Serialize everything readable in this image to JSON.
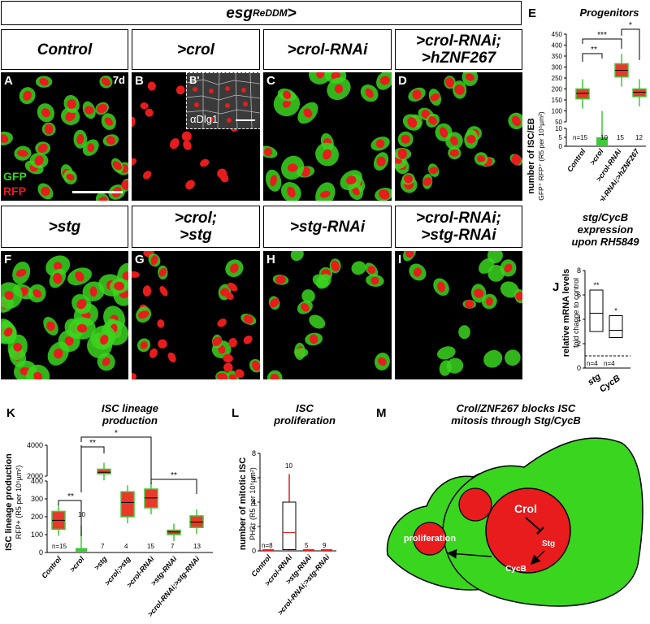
{
  "header": {
    "base": "esg",
    "sup": "ReDDM",
    "suffix": ">"
  },
  "row1": [
    {
      "letter": "A",
      "label": "Control",
      "corner": "7d"
    },
    {
      "letter": "B",
      "label": ">crol",
      "inset_letter": "B'",
      "inset_label": "αDlg1"
    },
    {
      "letter": "C",
      "label": ">crol-RNAi"
    },
    {
      "letter": "D",
      "label_lines": [
        ">crol-RNAi;",
        ">hZNF267"
      ]
    }
  ],
  "row2": [
    {
      "letter": "F",
      "label": ">stg"
    },
    {
      "letter": "G",
      "label_lines": [
        ">crol;",
        ">stg"
      ]
    },
    {
      "letter": "H",
      "label": ">stg-RNAi"
    },
    {
      "letter": "I",
      "label_lines": [
        ">crol-RNAi;",
        ">stg-RNAi"
      ]
    }
  ],
  "channels": {
    "gfp": "GFP",
    "rfp": "RFP"
  },
  "colors": {
    "green": "#39d51f",
    "red": "#e81c1c",
    "box_red": "#e83a2a",
    "box_green": "#3ec93a"
  },
  "panel_e": {
    "letter": "E",
    "title": "Progenitors",
    "ylabel_main": "number of ISC/EB",
    "ylabel_sub": "GFP⁺ RFP⁺ (R5 per 10⁵µm²)",
    "ticks": [
      "0",
      "5",
      "10",
      "50",
      "100",
      "150",
      "200",
      "250",
      "300",
      "350",
      "400",
      "450"
    ],
    "sig": [
      "**",
      "***",
      "*"
    ],
    "n": [
      "n=15",
      "10",
      "15",
      "12"
    ],
    "groups": [
      "Control",
      ">crol",
      ">crol-RNAi",
      ">crol-RNAi;>hZNF267"
    ]
  },
  "chart_data": [
    {
      "type": "box",
      "panel": "E",
      "title": "Progenitors",
      "ylabel": "number of ISC/EB GFP+ RFP+ (R5 per 10^5 µm²)",
      "categories": [
        "Control",
        ">crol",
        ">crol-RNAi",
        ">crol-RNAi;>hZNF267"
      ],
      "median": [
        180,
        2,
        285,
        185
      ],
      "q1": [
        155,
        0,
        255,
        165
      ],
      "q3": [
        200,
        5,
        315,
        200
      ],
      "n": [
        15,
        10,
        15,
        12
      ],
      "significance": [
        "**",
        "***",
        "*"
      ]
    },
    {
      "type": "box",
      "panel": "J",
      "title": "stg/CycB expression upon RH5849",
      "ylabel": "relative mRNA levels fold change to control",
      "categories": [
        "stg",
        "CycB"
      ],
      "median": [
        4.5,
        3.1
      ],
      "q1": [
        3.0,
        2.5
      ],
      "q3": [
        6.4,
        4.3
      ],
      "ylim": [
        0,
        8
      ],
      "n": [
        4,
        4
      ],
      "significance": [
        "**",
        "*"
      ]
    },
    {
      "type": "box",
      "panel": "K",
      "title": "ISC lineage production",
      "ylabel": "ISC lineage production RFP+ (R5 per 10^5 µm²)",
      "categories": [
        "Control",
        ">crol",
        ">stg",
        ">crol;>stg",
        ">crol-RNAi",
        ">stg-RNAi",
        ">crol-RNAi;>stg-RNAi"
      ],
      "median": [
        180,
        15,
        2250,
        280,
        305,
        115,
        170
      ],
      "q1": [
        130,
        10,
        2150,
        200,
        250,
        100,
        140
      ],
      "q3": [
        230,
        20,
        2450,
        340,
        355,
        125,
        205
      ],
      "n": [
        15,
        10,
        7,
        4,
        15,
        7,
        13
      ],
      "significance": [
        "**",
        "**",
        "*",
        "**"
      ]
    },
    {
      "type": "bar",
      "panel": "L",
      "title": "ISC proliferation",
      "ylabel": "number of mitotic ISC PH3+ (R5 per 10^5 µm²)",
      "categories": [
        "Control",
        ">crol-RNAi",
        ">stg-RNAi",
        ">crol-RNAi;>stg-RNAi"
      ],
      "values": [
        0.05,
        1.5,
        0.02,
        0.02
      ],
      "q3": [
        0.05,
        4.0,
        0.02,
        0.02
      ],
      "ylim": [
        0,
        8
      ],
      "n": [
        8,
        10,
        5,
        9
      ]
    }
  ],
  "panel_j": {
    "letter": "J",
    "title_lines": [
      "stg/CycB",
      "expression",
      "upon RH5849"
    ],
    "ylabel_main": "relative mRNA levels",
    "ylabel_sub": "fold change to control",
    "ticks": [
      "0",
      "2",
      "4",
      "6",
      "8"
    ],
    "sig": [
      "**",
      "*"
    ],
    "n": [
      "n=4",
      "n=4"
    ],
    "groups": [
      "stg",
      "CycB"
    ]
  },
  "panel_k": {
    "letter": "K",
    "title_lines": [
      "ISC lineage",
      "production"
    ],
    "ylabel_main": "ISC lineage production",
    "ylabel_sub": "RFP+ (R5 per 10⁵µm²)",
    "ticks": [
      "0",
      "100",
      "200",
      "300",
      "400",
      "2000",
      "4000"
    ],
    "sig": [
      "**",
      "**",
      "*",
      "**"
    ],
    "n": [
      "n=15",
      "10",
      "7",
      "4",
      "15",
      "7",
      "13"
    ],
    "groups": [
      "Control",
      ">crol",
      ">stg",
      ">crol;>stg",
      ">crol-RNAi",
      ">stg-RNAi",
      ">crol-RNAi;>stg-RNAi"
    ]
  },
  "panel_l": {
    "letter": "L",
    "title_lines": [
      "ISC",
      "proliferation"
    ],
    "ylabel_main": "number of mitotic ISC",
    "ylabel_sub": "PH3⁺ (R5 per 10⁵µm²)",
    "ticks": [
      "0",
      "2",
      "4",
      "6",
      "8"
    ],
    "n": [
      "n=8",
      "10",
      "5",
      "9"
    ],
    "groups": [
      "Control",
      ">crol-RNAi",
      ">stg-RNAi",
      ">crol-RNAi;>stg-RNAi"
    ]
  },
  "panel_m": {
    "letter": "M",
    "title_lines": [
      "Crol/ZNF267 blocks ISC",
      "mitosis through Stg/CycB"
    ],
    "crol": "Crol",
    "stg": "Stg",
    "cycb": "CycB",
    "proliferation": "proliferation"
  }
}
